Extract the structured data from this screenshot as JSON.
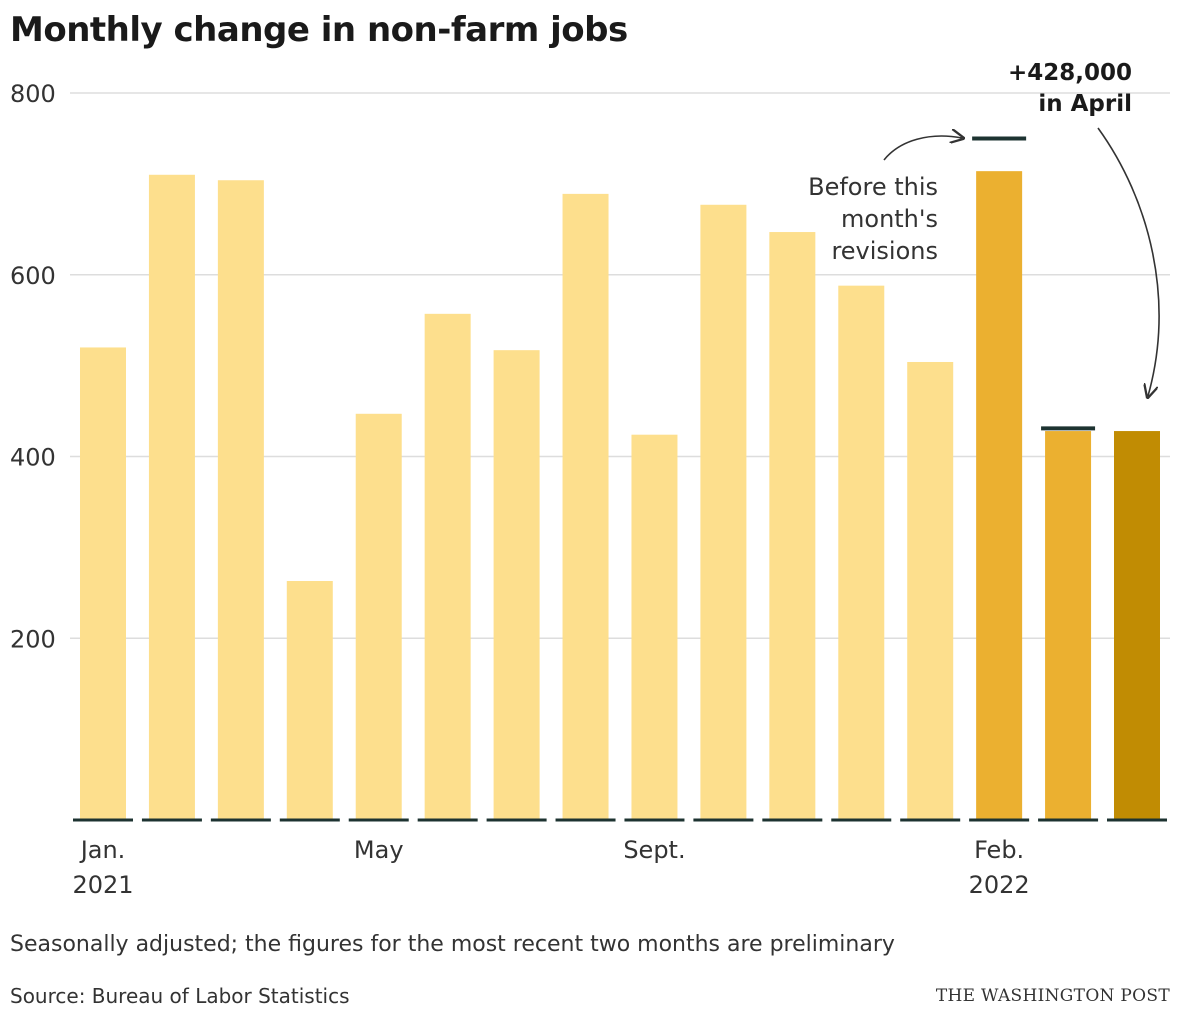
{
  "header": {
    "title": "Monthly change in non-farm jobs"
  },
  "chart_data": {
    "type": "bar",
    "title": "Monthly change in non-farm jobs",
    "xlabel": "",
    "ylabel": "",
    "ylim": [
      0,
      800
    ],
    "yticks": [
      200,
      400,
      600,
      800
    ],
    "grid": true,
    "categories": [
      "Jan. 2021",
      "Feb. 2021",
      "Mar. 2021",
      "Apr. 2021",
      "May 2021",
      "Jun. 2021",
      "Jul. 2021",
      "Aug. 2021",
      "Sept. 2021",
      "Oct. 2021",
      "Nov. 2021",
      "Dec. 2021",
      "Jan. 2022",
      "Feb. 2022",
      "Mar. 2022",
      "Apr. 2022"
    ],
    "x_tick_labels": [
      {
        "index": 0,
        "lines": [
          "Jan.",
          "2021"
        ]
      },
      {
        "index": 4,
        "lines": [
          "May"
        ]
      },
      {
        "index": 8,
        "lines": [
          "Sept."
        ]
      },
      {
        "index": 13,
        "lines": [
          "Feb.",
          "2022"
        ]
      }
    ],
    "values": [
      520,
      710,
      704,
      263,
      447,
      557,
      517,
      689,
      424,
      677,
      647,
      588,
      504,
      714,
      428,
      428
    ],
    "before_revisions": [
      null,
      null,
      null,
      null,
      null,
      null,
      null,
      null,
      null,
      null,
      null,
      null,
      null,
      750,
      431,
      null
    ],
    "colors": {
      "bar": "#fddf8d",
      "recent": "#ebb030",
      "latest": "#c18c03",
      "baseline": "#1d3331",
      "grid": "#dddddd",
      "revision_mark": "#1d3331",
      "annotation": "#333333"
    },
    "annotations": {
      "revision_note": [
        "Before this",
        "month's",
        "revisions"
      ],
      "callout": [
        "+428,000",
        "in April"
      ]
    }
  },
  "footer": {
    "note": "Seasonally adjusted; the figures for the most recent two months are preliminary",
    "source": "Source: Bureau of Labor Statistics",
    "credit": "THE WASHINGTON POST"
  }
}
